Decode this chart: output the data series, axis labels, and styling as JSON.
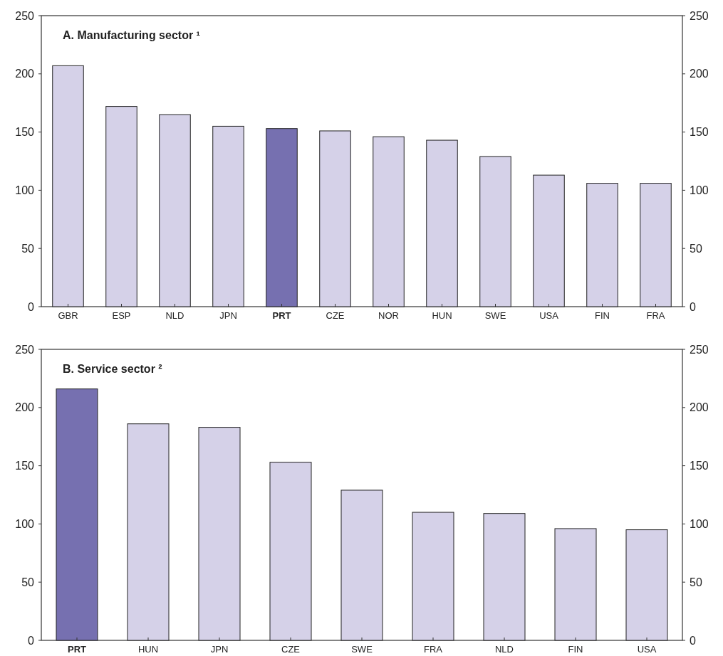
{
  "chart_data": [
    {
      "type": "bar",
      "title": "A. Manufacturing sector ¹",
      "categories": [
        "GBR",
        "ESP",
        "NLD",
        "JPN",
        "PRT",
        "CZE",
        "NOR",
        "HUN",
        "SWE",
        "USA",
        "FIN",
        "FRA"
      ],
      "values": [
        207,
        172,
        165,
        155,
        153,
        151,
        146,
        143,
        129,
        113,
        106,
        106
      ],
      "colors": [
        "#d5d1e8",
        "#d5d1e8",
        "#d5d1e8",
        "#d5d1e8",
        "#7670b0",
        "#d5d1e8",
        "#d5d1e8",
        "#d5d1e8",
        "#d5d1e8",
        "#d5d1e8",
        "#d5d1e8",
        "#d5d1e8"
      ],
      "ylim": [
        0,
        250
      ],
      "yticks": [
        0,
        50,
        100,
        150,
        200,
        250
      ],
      "y2lim": [
        0,
        250
      ],
      "y2ticks": [
        0,
        50,
        100,
        150,
        200,
        250
      ],
      "grid": false
    },
    {
      "type": "bar",
      "title": "B. Service sector ²",
      "categories": [
        "PRT",
        "HUN",
        "JPN",
        "CZE",
        "SWE",
        "FRA",
        "NLD",
        "FIN",
        "USA"
      ],
      "values": [
        216,
        186,
        183,
        153,
        129,
        110,
        109,
        96,
        95
      ],
      "colors": [
        "#7670b0",
        "#d5d1e8",
        "#d5d1e8",
        "#d5d1e8",
        "#d5d1e8",
        "#d5d1e8",
        "#d5d1e8",
        "#d5d1e8",
        "#d5d1e8"
      ],
      "ylim": [
        0,
        250
      ],
      "yticks": [
        0,
        50,
        100,
        150,
        200,
        250
      ],
      "y2lim": [
        0,
        250
      ],
      "y2ticks": [
        0,
        50,
        100,
        150,
        200,
        250
      ],
      "grid": false
    }
  ]
}
